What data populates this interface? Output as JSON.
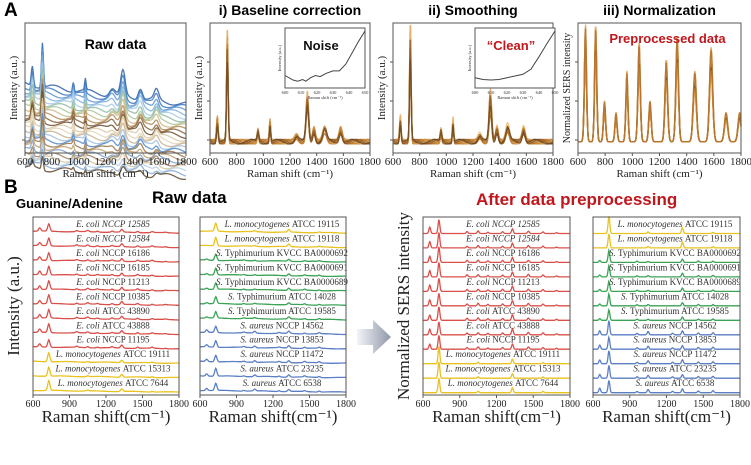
{
  "figure": {
    "panel_a_letter": "A",
    "panel_b_letter": "B",
    "panel_b_header_left": "Guanine/Adenine",
    "panel_b_raw_title": "Raw data",
    "panel_b_processed_title": "After data preprocessing"
  },
  "colors": {
    "ecoli": "#d9504a",
    "listeria": "#e8c21e",
    "salmonella": "#3aa356",
    "saureus": "#5a7fc4",
    "processed_orange": "#d89a4a",
    "processed_dark": "#6b4a26",
    "title_red": "#c0161c"
  },
  "chart_data": [
    {
      "id": "a-raw",
      "type": "line",
      "title": "Raw data",
      "xlabel": "Raman shift (cm⁻¹)",
      "ylabel": "Intensity (a.u.)",
      "xlim": [
        600,
        1800
      ],
      "xticks": [
        600,
        800,
        1000,
        1200,
        1400,
        1600,
        1800
      ],
      "peaks_cm": [
        655,
        730,
        960,
        1050,
        1250,
        1330,
        1460,
        1580
      ],
      "series_count": 24,
      "note": "Many overlapping raw spectra with varying baselines (blue/green/brown/beige)"
    },
    {
      "id": "a-baseline",
      "type": "line",
      "title": "i) Baseline correction",
      "xlabel": "Raman shift (cm⁻¹)",
      "ylabel": "Intensity (a.u.)",
      "xlim": [
        600,
        1800
      ],
      "xticks": [
        600,
        800,
        1000,
        1200,
        1400,
        1600,
        1800
      ],
      "peaks_cm": [
        655,
        730,
        960,
        1050,
        1250,
        1330,
        1380,
        1460,
        1580
      ],
      "inset": {
        "label": "Noise",
        "xlabel": "Raman shift (cm⁻¹)",
        "ylabel": "Intensity (a.u.)",
        "xlim": [
          600,
          650
        ],
        "xticks": [
          600,
          610,
          620,
          630,
          640,
          650
        ],
        "x": [
          600,
          605,
          608,
          611,
          613,
          616,
          619,
          622,
          626,
          630,
          634,
          638,
          642,
          646,
          650
        ],
        "y": [
          0.22,
          0.14,
          0.12,
          0.15,
          0.12,
          0.18,
          0.22,
          0.2,
          0.26,
          0.3,
          0.3,
          0.42,
          0.62,
          0.82,
          1.0
        ]
      }
    },
    {
      "id": "a-smoothing",
      "type": "line",
      "title": "ii) Smoothing",
      "xlabel": "Raman shift (cm⁻¹)",
      "ylabel": "Intensity (a.u.)",
      "xlim": [
        600,
        1800
      ],
      "xticks": [
        600,
        800,
        1000,
        1200,
        1400,
        1600,
        1800
      ],
      "peaks_cm": [
        655,
        730,
        960,
        1050,
        1250,
        1330,
        1380,
        1460,
        1580
      ],
      "inset": {
        "label": "“Clean”",
        "xlabel": "Raman shift (cm⁻¹)",
        "ylabel": "Intensity (a.u.)",
        "xlim": [
          600,
          650
        ],
        "xticks": [
          600,
          610,
          620,
          630,
          640,
          650
        ],
        "x": [
          600,
          605,
          610,
          615,
          620,
          625,
          630,
          635,
          640,
          645,
          650
        ],
        "y": [
          0.18,
          0.15,
          0.14,
          0.15,
          0.18,
          0.21,
          0.24,
          0.33,
          0.55,
          0.78,
          1.0
        ]
      }
    },
    {
      "id": "a-normalization",
      "type": "line",
      "title": "iii) Normalization",
      "annotation": "Preprocessed data",
      "xlabel": "Raman shift (cm⁻¹)",
      "ylabel": "Normalized SERS intensity",
      "xlim": [
        600,
        1800
      ],
      "xticks": [
        600,
        800,
        1000,
        1200,
        1400,
        1600,
        1800
      ],
      "peaks_cm": [
        655,
        730,
        795,
        880,
        960,
        1050,
        1130,
        1250,
        1330,
        1460,
        1580,
        1690,
        1790
      ]
    },
    {
      "id": "b-raw-left",
      "type": "line",
      "title": "Raw data",
      "xlabel": "Raman shift(cm⁻¹)",
      "ylabel": "Intensity (a.u.)",
      "xlim": [
        600,
        1800
      ],
      "xticks": [
        600,
        900,
        1200,
        1500,
        1800
      ],
      "series": [
        {
          "species": "E. coli",
          "strain": "NCCP 12585",
          "group": "ecoli",
          "italic_all": true
        },
        {
          "species": "E. coli",
          "strain": "NCCP 12584",
          "group": "ecoli",
          "italic_all": true
        },
        {
          "species": "E. coli",
          "strain": "NCCP 16186",
          "group": "ecoli"
        },
        {
          "species": "E. coli",
          "strain": "NCCP 16185",
          "group": "ecoli"
        },
        {
          "species": "E. coli",
          "strain": "NCCP 11213",
          "group": "ecoli"
        },
        {
          "species": "E. coli",
          "strain": "NCCP 10385",
          "group": "ecoli"
        },
        {
          "species": "E. coli",
          "strain": "ATCC 43890",
          "group": "ecoli"
        },
        {
          "species": "E. coli",
          "strain": "ATCC 43888",
          "group": "ecoli"
        },
        {
          "species": "E. coli",
          "strain": "NCCP 11195",
          "group": "ecoli"
        },
        {
          "species": "L. monocytogenes",
          "strain": "ATCC 19111",
          "group": "listeria"
        },
        {
          "species": "L. monocytogenes",
          "strain": "ATCC 15313",
          "group": "listeria"
        },
        {
          "species": "L. monocytogenes",
          "strain": "ATCC 7644",
          "group": "listeria"
        }
      ]
    },
    {
      "id": "b-raw-right",
      "type": "line",
      "xlabel": "Raman shift(cm⁻¹)",
      "xlim": [
        600,
        1800
      ],
      "xticks": [
        600,
        900,
        1200,
        1500,
        1800
      ],
      "series": [
        {
          "species": "L. monocytogenes",
          "strain": "ATCC 19115",
          "group": "listeria"
        },
        {
          "species": "L. monocytogenes",
          "strain": "ATCC 19118",
          "group": "listeria"
        },
        {
          "species": "S.",
          "strain": "Typhimurium KVCC BA0000692",
          "group": "salmonella"
        },
        {
          "species": "S.",
          "strain": "Typhimurium KVCC BA0000691",
          "group": "salmonella"
        },
        {
          "species": "S.",
          "strain": "Typhimurium KVCC BA0000689",
          "group": "salmonella"
        },
        {
          "species": "S.",
          "strain": "Typhimurium ATCC 14028",
          "group": "salmonella"
        },
        {
          "species": "S.",
          "strain": "Typhimurium ATCC 19585",
          "group": "salmonella"
        },
        {
          "species": "S. aureus",
          "strain": "NCCP 14562",
          "group": "saureus"
        },
        {
          "species": "S. aureus",
          "strain": "NCCP 13853",
          "group": "saureus"
        },
        {
          "species": "S. aureus",
          "strain": "NCCP 11472",
          "group": "saureus"
        },
        {
          "species": "S. aureus",
          "strain": "ATCC 23235",
          "group": "saureus"
        },
        {
          "species": "S. aureus",
          "strain": "ATCC 6538",
          "group": "saureus"
        }
      ]
    },
    {
      "id": "b-proc-left",
      "type": "line",
      "title": "After data preprocessing",
      "xlabel": "Raman shift(cm⁻¹)",
      "ylabel": "Normalized SERS intensity",
      "xlim": [
        600,
        1800
      ],
      "xticks": [
        600,
        900,
        1200,
        1500,
        1800
      ],
      "series_ref": "b-raw-left"
    },
    {
      "id": "b-proc-right",
      "type": "line",
      "xlabel": "Raman shift(cm⁻¹)",
      "xlim": [
        600,
        1800
      ],
      "xticks": [
        600,
        900,
        1200,
        1500,
        1800
      ],
      "series_ref": "b-raw-right"
    }
  ]
}
